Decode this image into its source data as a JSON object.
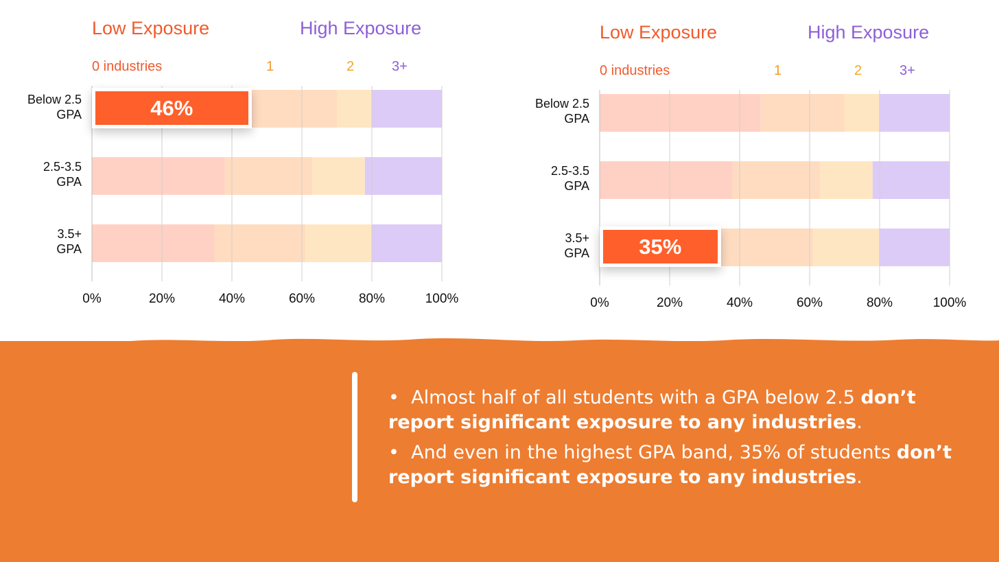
{
  "chart_data": [
    {
      "type": "bar",
      "stacked": true,
      "orientation": "horizontal",
      "header_low": "Low Exposure",
      "header_high": "High Exposure",
      "series_labels": [
        "0 industries",
        "1",
        "2",
        "3+"
      ],
      "categories": [
        "Below 2.5 GPA",
        "2.5-3.5 GPA",
        "3.5+ GPA"
      ],
      "category_lines": [
        [
          "Below 2.5",
          "GPA"
        ],
        [
          "2.5-3.5",
          "GPA"
        ],
        [
          "3.5+",
          "GPA"
        ]
      ],
      "series": [
        {
          "name": "0 industries",
          "values": [
            46,
            38,
            35
          ],
          "color": "#ffd1c4"
        },
        {
          "name": "1",
          "values": [
            24,
            25,
            26
          ],
          "color": "#ffdcc0"
        },
        {
          "name": "2",
          "values": [
            10,
            15,
            19
          ],
          "color": "#ffe6c2"
        },
        {
          "name": "3+",
          "values": [
            20,
            22,
            20
          ],
          "color": "#dccbf7"
        }
      ],
      "xlim": [
        0,
        100
      ],
      "xticks": [
        "0%",
        "20%",
        "40%",
        "60%",
        "80%",
        "100%"
      ],
      "grid": true,
      "callout": {
        "category_index": 0,
        "label": "46%",
        "value": 46
      }
    },
    {
      "type": "bar",
      "stacked": true,
      "orientation": "horizontal",
      "header_low": "Low Exposure",
      "header_high": "High Exposure",
      "series_labels": [
        "0 industries",
        "1",
        "2",
        "3+"
      ],
      "categories": [
        "Below 2.5 GPA",
        "2.5-3.5 GPA",
        "3.5+ GPA"
      ],
      "category_lines": [
        [
          "Below 2.5",
          "GPA"
        ],
        [
          "2.5-3.5",
          "GPA"
        ],
        [
          "3.5+",
          "GPA"
        ]
      ],
      "series": [
        {
          "name": "0 industries",
          "values": [
            46,
            38,
            35
          ],
          "color": "#ffd1c4"
        },
        {
          "name": "1",
          "values": [
            24,
            25,
            26
          ],
          "color": "#ffdcc0"
        },
        {
          "name": "2",
          "values": [
            10,
            15,
            19
          ],
          "color": "#ffe6c2"
        },
        {
          "name": "3+",
          "values": [
            20,
            22,
            20
          ],
          "color": "#dccbf7"
        }
      ],
      "xlim": [
        0,
        100
      ],
      "xticks": [
        "0%",
        "20%",
        "40%",
        "60%",
        "80%",
        "100%"
      ],
      "grid": true,
      "callout": {
        "category_index": 2,
        "label": "35%",
        "value": 35
      }
    }
  ],
  "notes": {
    "bullet1_plain": "Almost half of all students with a GPA below 2.5 ",
    "bullet1_bold": "don’t report significant exposure to any industries",
    "bullet1_end": ".",
    "bullet2_plain": "And even in the highest GPA band, 35% of students ",
    "bullet2_bold": "don’t report significant exposure to any industries",
    "bullet2_end": "."
  },
  "colors": {
    "band": "#ed7d31",
    "callout": "#ff5f2a",
    "low_header": "#f15a2b",
    "high_header": "#8e5fd8"
  }
}
